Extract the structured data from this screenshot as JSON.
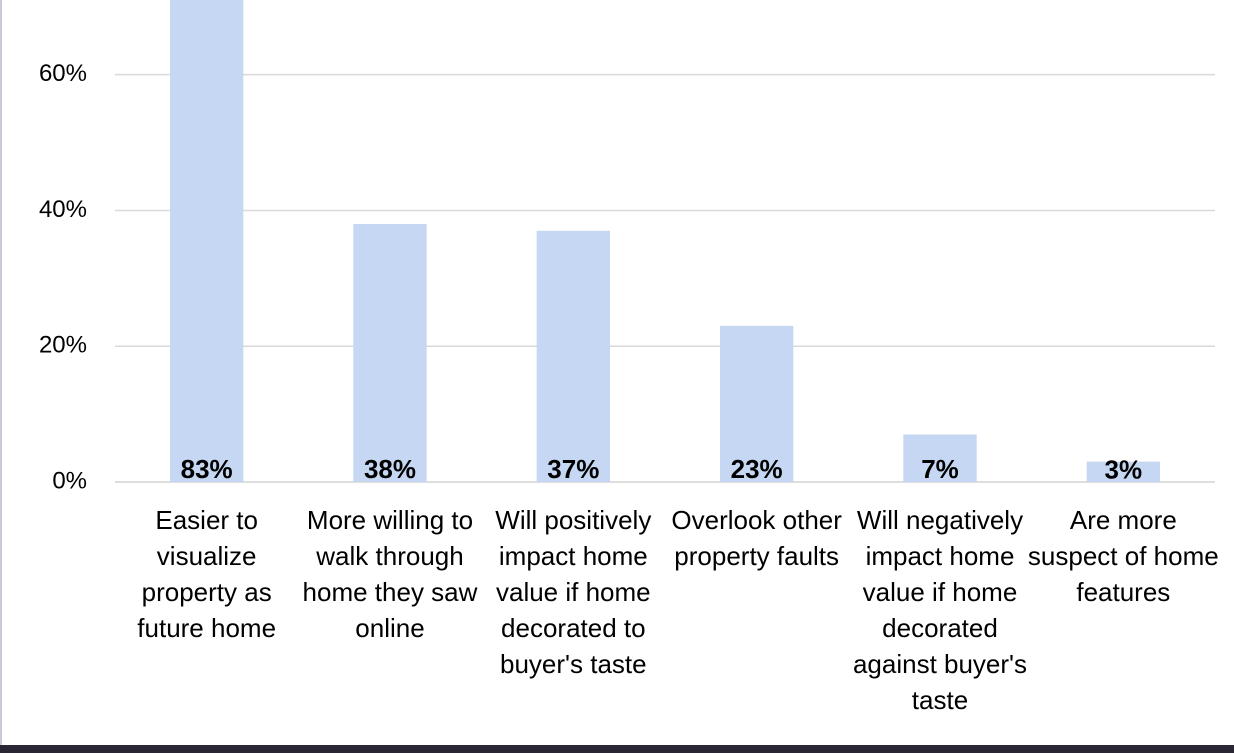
{
  "chart_data": {
    "type": "bar",
    "categories": [
      "Easier to visualize property as future home",
      "More willing to walk through home they saw online",
      "Will positively impact home value if home decorated to buyer's taste",
      "Overlook other property faults",
      "Will negatively impact home value if home decorated against buyer's taste",
      "Are more suspect of home features"
    ],
    "values": [
      83,
      38,
      37,
      23,
      7,
      3
    ],
    "value_labels": [
      "83%",
      "38%",
      "37%",
      "23%",
      "7%",
      "3%"
    ],
    "color": "#c5d7f2",
    "ylim": [
      0,
      71
    ],
    "yticks": [
      {
        "value": 0,
        "label": "0%"
      },
      {
        "value": 20,
        "label": "20%"
      },
      {
        "value": 40,
        "label": "40%"
      },
      {
        "value": 60,
        "label": "60%"
      }
    ],
    "grid": true
  }
}
